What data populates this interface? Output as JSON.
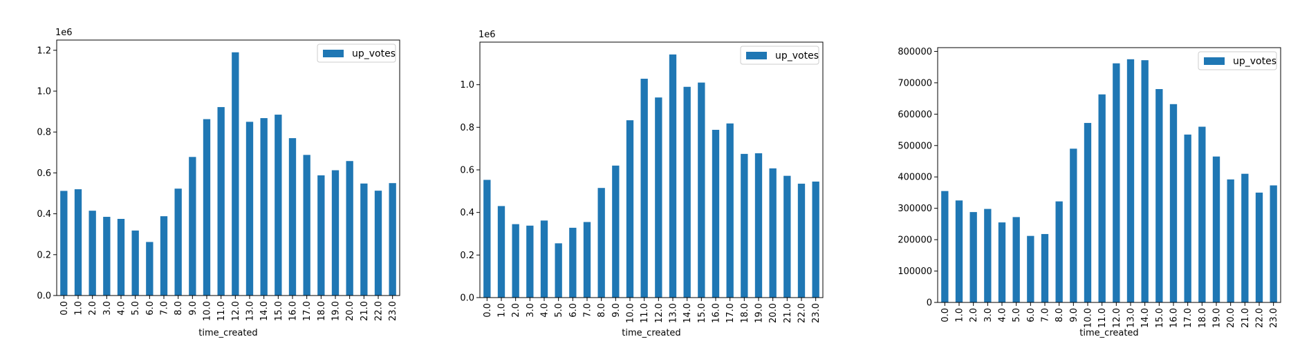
{
  "chart_data": [
    {
      "type": "bar",
      "categories": [
        "0.0",
        "1.0",
        "2.0",
        "3.0",
        "4.0",
        "5.0",
        "6.0",
        "7.0",
        "8.0",
        "9.0",
        "10.0",
        "11.0",
        "12.0",
        "13.0",
        "14.0",
        "15.0",
        "16.0",
        "17.0",
        "18.0",
        "19.0",
        "20.0",
        "21.0",
        "22.0",
        "23.0"
      ],
      "series": [
        {
          "name": "up_votes",
          "values": [
            512000,
            520000,
            415000,
            385000,
            375000,
            318000,
            262000,
            388000,
            523000,
            678000,
            863000,
            922000,
            1190000,
            850000,
            868000,
            885000,
            770000,
            688000,
            588000,
            613000,
            658000,
            548000,
            513000,
            550000
          ],
          "color": "#1f77b4"
        }
      ],
      "xlabel": "time_created",
      "ylabel": "",
      "ylim": [
        0,
        1250000
      ],
      "y_ticks": [
        "0.0",
        "0.2",
        "0.4",
        "0.6",
        "0.8",
        "1.0",
        "1.2"
      ],
      "y_offset": "1e6",
      "legend": "top-right",
      "grid": false
    },
    {
      "type": "bar",
      "categories": [
        "0.0",
        "1.0",
        "2.0",
        "3.0",
        "4.0",
        "5.0",
        "6.0",
        "7.0",
        "8.0",
        "9.0",
        "10.0",
        "11.0",
        "12.0",
        "13.0",
        "14.0",
        "15.0",
        "16.0",
        "17.0",
        "18.0",
        "19.0",
        "20.0",
        "21.0",
        "22.0",
        "23.0"
      ],
      "series": [
        {
          "name": "up_votes",
          "values": [
            553000,
            430000,
            345000,
            338000,
            362000,
            255000,
            328000,
            355000,
            515000,
            620000,
            833000,
            1028000,
            940000,
            1142000,
            990000,
            1010000,
            788000,
            818000,
            675000,
            678000,
            607000,
            572000,
            535000,
            545000
          ],
          "color": "#1f77b4"
        }
      ],
      "xlabel": "time_created",
      "ylabel": "",
      "ylim": [
        0,
        1200000
      ],
      "y_ticks": [
        "0.0",
        "0.2",
        "0.4",
        "0.6",
        "0.8",
        "1.0"
      ],
      "y_offset": "1e6",
      "legend": "top-right",
      "grid": false
    },
    {
      "type": "bar",
      "categories": [
        "0.0",
        "1.0",
        "2.0",
        "3.0",
        "4.0",
        "5.0",
        "6.0",
        "7.0",
        "8.0",
        "9.0",
        "10.0",
        "11.0",
        "12.0",
        "13.0",
        "14.0",
        "15.0",
        "16.0",
        "17.0",
        "18.0",
        "19.0",
        "20.0",
        "21.0",
        "22.0",
        "23.0"
      ],
      "series": [
        {
          "name": "up_votes",
          "values": [
            355000,
            325000,
            288000,
            298000,
            255000,
            272000,
            212000,
            218000,
            322000,
            490000,
            572000,
            663000,
            762000,
            775000,
            772000,
            680000,
            632000,
            535000,
            560000,
            465000,
            392000,
            410000,
            350000,
            373000
          ],
          "color": "#1f77b4"
        }
      ],
      "xlabel": "time_created",
      "ylabel": "",
      "ylim": [
        0,
        812000
      ],
      "y_ticks": [
        "0",
        "100000",
        "200000",
        "300000",
        "400000",
        "500000",
        "600000",
        "700000",
        "800000"
      ],
      "y_offset": "",
      "legend": "top-right",
      "grid": false
    }
  ]
}
